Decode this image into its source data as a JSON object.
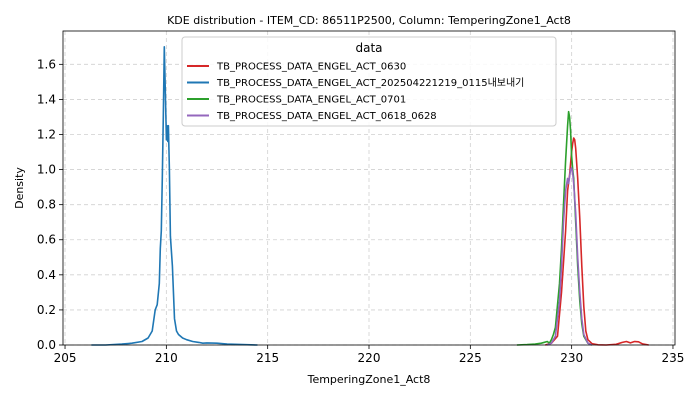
{
  "chart_data": {
    "type": "line",
    "title": "KDE distribution - ITEM_CD: 86511P2500, Column: TemperingZone1_Act8",
    "xlabel": "TemperingZone1_Act8",
    "ylabel": "Density",
    "xlim": [
      204.9,
      235.1
    ],
    "ylim": [
      0,
      1.79
    ],
    "xticks": [
      205,
      210,
      215,
      220,
      225,
      230,
      235
    ],
    "yticks": [
      0.0,
      0.2,
      0.4,
      0.6,
      0.8,
      1.0,
      1.2,
      1.4,
      1.6
    ],
    "grid": true,
    "legend": {
      "title": "data",
      "placement": "top-center"
    },
    "series": [
      {
        "name": "TB_PROCESS_DATA_ENGEL_ACT_0630",
        "color": "#d62728",
        "x": [
          228.7,
          229.0,
          229.3,
          229.5,
          229.7,
          229.8,
          229.9,
          230.0,
          230.05,
          230.1,
          230.15,
          230.2,
          230.3,
          230.4,
          230.5,
          230.6,
          230.7,
          230.8,
          231.0,
          231.3,
          231.7,
          232.2,
          232.5,
          232.7,
          232.9,
          233.1,
          233.3,
          233.5,
          233.8
        ],
        "y": [
          0.0,
          0.01,
          0.05,
          0.3,
          0.65,
          0.88,
          0.97,
          1.1,
          1.15,
          1.18,
          1.17,
          1.12,
          0.95,
          0.72,
          0.45,
          0.22,
          0.08,
          0.03,
          0.008,
          0.001,
          0.0,
          0.004,
          0.015,
          0.02,
          0.012,
          0.02,
          0.018,
          0.006,
          0.0
        ]
      },
      {
        "name": "TB_PROCESS_DATA_ENGEL_ACT_202504221219_0115내보내기",
        "color": "#1f77b4",
        "x": [
          206.3,
          207.0,
          207.8,
          208.3,
          208.8,
          209.1,
          209.3,
          209.45,
          209.55,
          209.65,
          209.7,
          209.75,
          209.8,
          209.85,
          209.9,
          209.95,
          210.0,
          210.03,
          210.07,
          210.1,
          210.15,
          210.2,
          210.3,
          210.4,
          210.5,
          210.6,
          210.8,
          211.0,
          211.3,
          211.6,
          211.8,
          212.0,
          212.5,
          213.0,
          214.5
        ],
        "y": [
          0.0,
          0.0,
          0.005,
          0.01,
          0.02,
          0.04,
          0.08,
          0.2,
          0.23,
          0.35,
          0.55,
          0.65,
          0.95,
          1.3,
          1.7,
          1.45,
          1.17,
          1.25,
          1.16,
          1.25,
          1.0,
          0.62,
          0.45,
          0.15,
          0.08,
          0.06,
          0.04,
          0.03,
          0.02,
          0.015,
          0.01,
          0.012,
          0.01,
          0.005,
          0.0
        ]
      },
      {
        "name": "TB_PROCESS_DATA_ENGEL_ACT_0701",
        "color": "#2ca02c",
        "x": [
          227.3,
          227.8,
          228.2,
          228.5,
          228.8,
          228.9,
          229.0,
          229.1,
          229.2,
          229.4,
          229.5,
          229.6,
          229.7,
          229.8,
          229.85,
          229.9,
          229.95,
          230.0,
          230.05,
          230.1,
          230.2,
          230.3,
          230.4,
          230.5,
          230.6,
          230.8,
          231.0
        ],
        "y": [
          0.0,
          0.002,
          0.005,
          0.01,
          0.02,
          0.01,
          0.03,
          0.06,
          0.1,
          0.35,
          0.55,
          0.8,
          1.05,
          1.25,
          1.33,
          1.3,
          1.22,
          1.08,
          1.0,
          0.95,
          0.7,
          0.45,
          0.25,
          0.12,
          0.05,
          0.01,
          0.0
        ]
      },
      {
        "name": "TB_PROCESS_DATA_ENGEL_ACT_0618_0628",
        "color": "#9467bd",
        "x": [
          228.8,
          229.0,
          229.2,
          229.4,
          229.5,
          229.6,
          229.7,
          229.8,
          229.85,
          229.9,
          229.95,
          230.0,
          230.05,
          230.1,
          230.2,
          230.3,
          230.4,
          230.5,
          230.6,
          230.8,
          231.0
        ],
        "y": [
          0.0,
          0.01,
          0.05,
          0.25,
          0.45,
          0.7,
          0.88,
          0.95,
          0.92,
          0.96,
          1.0,
          1.01,
          0.98,
          0.92,
          0.75,
          0.5,
          0.3,
          0.15,
          0.06,
          0.01,
          0.0
        ]
      }
    ]
  }
}
